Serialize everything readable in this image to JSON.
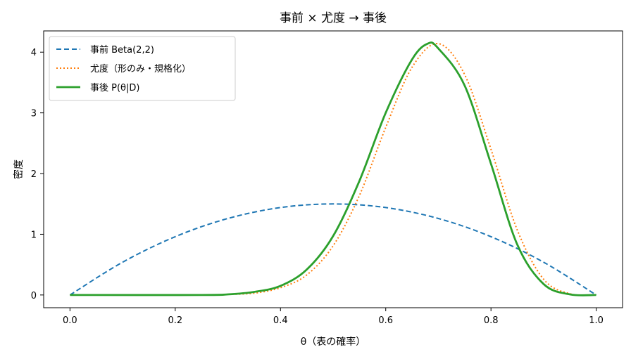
{
  "chart_data": {
    "type": "line",
    "title": "事前 × 尤度 → 事後",
    "xlabel": "θ（表の確率）",
    "ylabel": "密度",
    "xlim": [
      -0.05,
      1.05
    ],
    "ylim": [
      -0.21,
      4.35
    ],
    "xticks": [
      0.0,
      0.2,
      0.4,
      0.6,
      0.8,
      1.0
    ],
    "xtick_labels": [
      "0.0",
      "0.2",
      "0.4",
      "0.6",
      "0.8",
      "1.0"
    ],
    "yticks": [
      0,
      1,
      2,
      3,
      4
    ],
    "ytick_labels": [
      "0",
      "1",
      "2",
      "3",
      "4"
    ],
    "grid": false,
    "legend_position": "upper-left",
    "series": [
      {
        "name": "事前 Beta(2,2)",
        "color": "#1f77b4",
        "style": "dashed",
        "x": [
          0.0,
          0.1,
          0.2,
          0.3,
          0.4,
          0.5,
          0.6,
          0.7,
          0.8,
          0.9,
          1.0
        ],
        "y": [
          0.0,
          0.54,
          0.96,
          1.26,
          1.44,
          1.5,
          1.44,
          1.26,
          0.96,
          0.54,
          0.0
        ]
      },
      {
        "name": "尤度（形のみ・規格化）",
        "color": "#ff7f0e",
        "style": "dotted",
        "x": [
          0.0,
          0.25,
          0.3,
          0.35,
          0.4,
          0.45,
          0.5,
          0.55,
          0.6,
          0.65,
          0.7,
          0.75,
          0.8,
          0.85,
          0.9,
          0.95,
          1.0
        ],
        "y": [
          0.0,
          0.0,
          0.01,
          0.03,
          0.12,
          0.33,
          0.81,
          1.64,
          2.76,
          3.75,
          4.14,
          3.63,
          2.4,
          1.07,
          0.26,
          0.02,
          0.0
        ]
      },
      {
        "name": "事後 P(θ|D)",
        "color": "#2ca02c",
        "style": "solid",
        "x": [
          0.0,
          0.25,
          0.3,
          0.35,
          0.4,
          0.45,
          0.5,
          0.55,
          0.6,
          0.65,
          0.68,
          0.7,
          0.75,
          0.8,
          0.85,
          0.9,
          0.95,
          1.0
        ],
        "y": [
          0.0,
          0.0,
          0.01,
          0.05,
          0.15,
          0.42,
          0.97,
          1.88,
          3.0,
          3.88,
          4.14,
          4.06,
          3.45,
          2.16,
          0.83,
          0.18,
          0.01,
          0.0
        ]
      }
    ]
  }
}
